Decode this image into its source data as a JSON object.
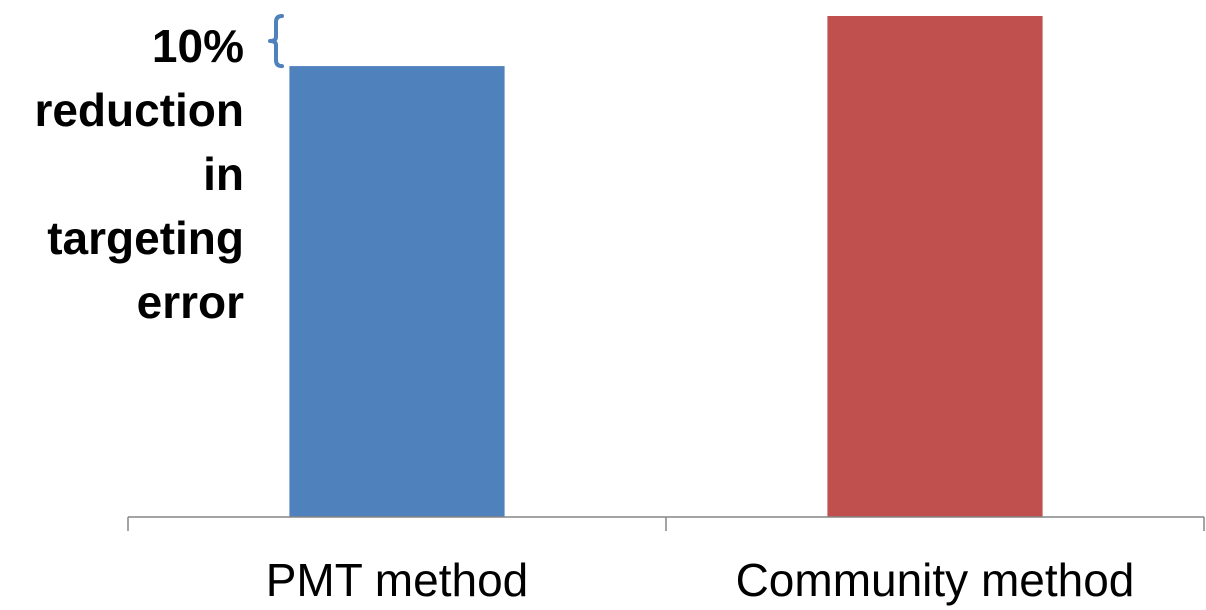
{
  "chart_data": {
    "type": "bar",
    "categories": [
      "PMT method",
      "Community method"
    ],
    "values": [
      90,
      100
    ],
    "colors": [
      "#4F81BD",
      "#C0504D"
    ],
    "ylim": [
      0,
      100
    ],
    "title": "",
    "xlabel": "",
    "ylabel": "",
    "grid": false,
    "annotation": {
      "text": "10%\nreduction\nin\ntargeting\nerror",
      "bracket_color": "#4F81BD",
      "range": [
        90,
        100
      ]
    }
  }
}
